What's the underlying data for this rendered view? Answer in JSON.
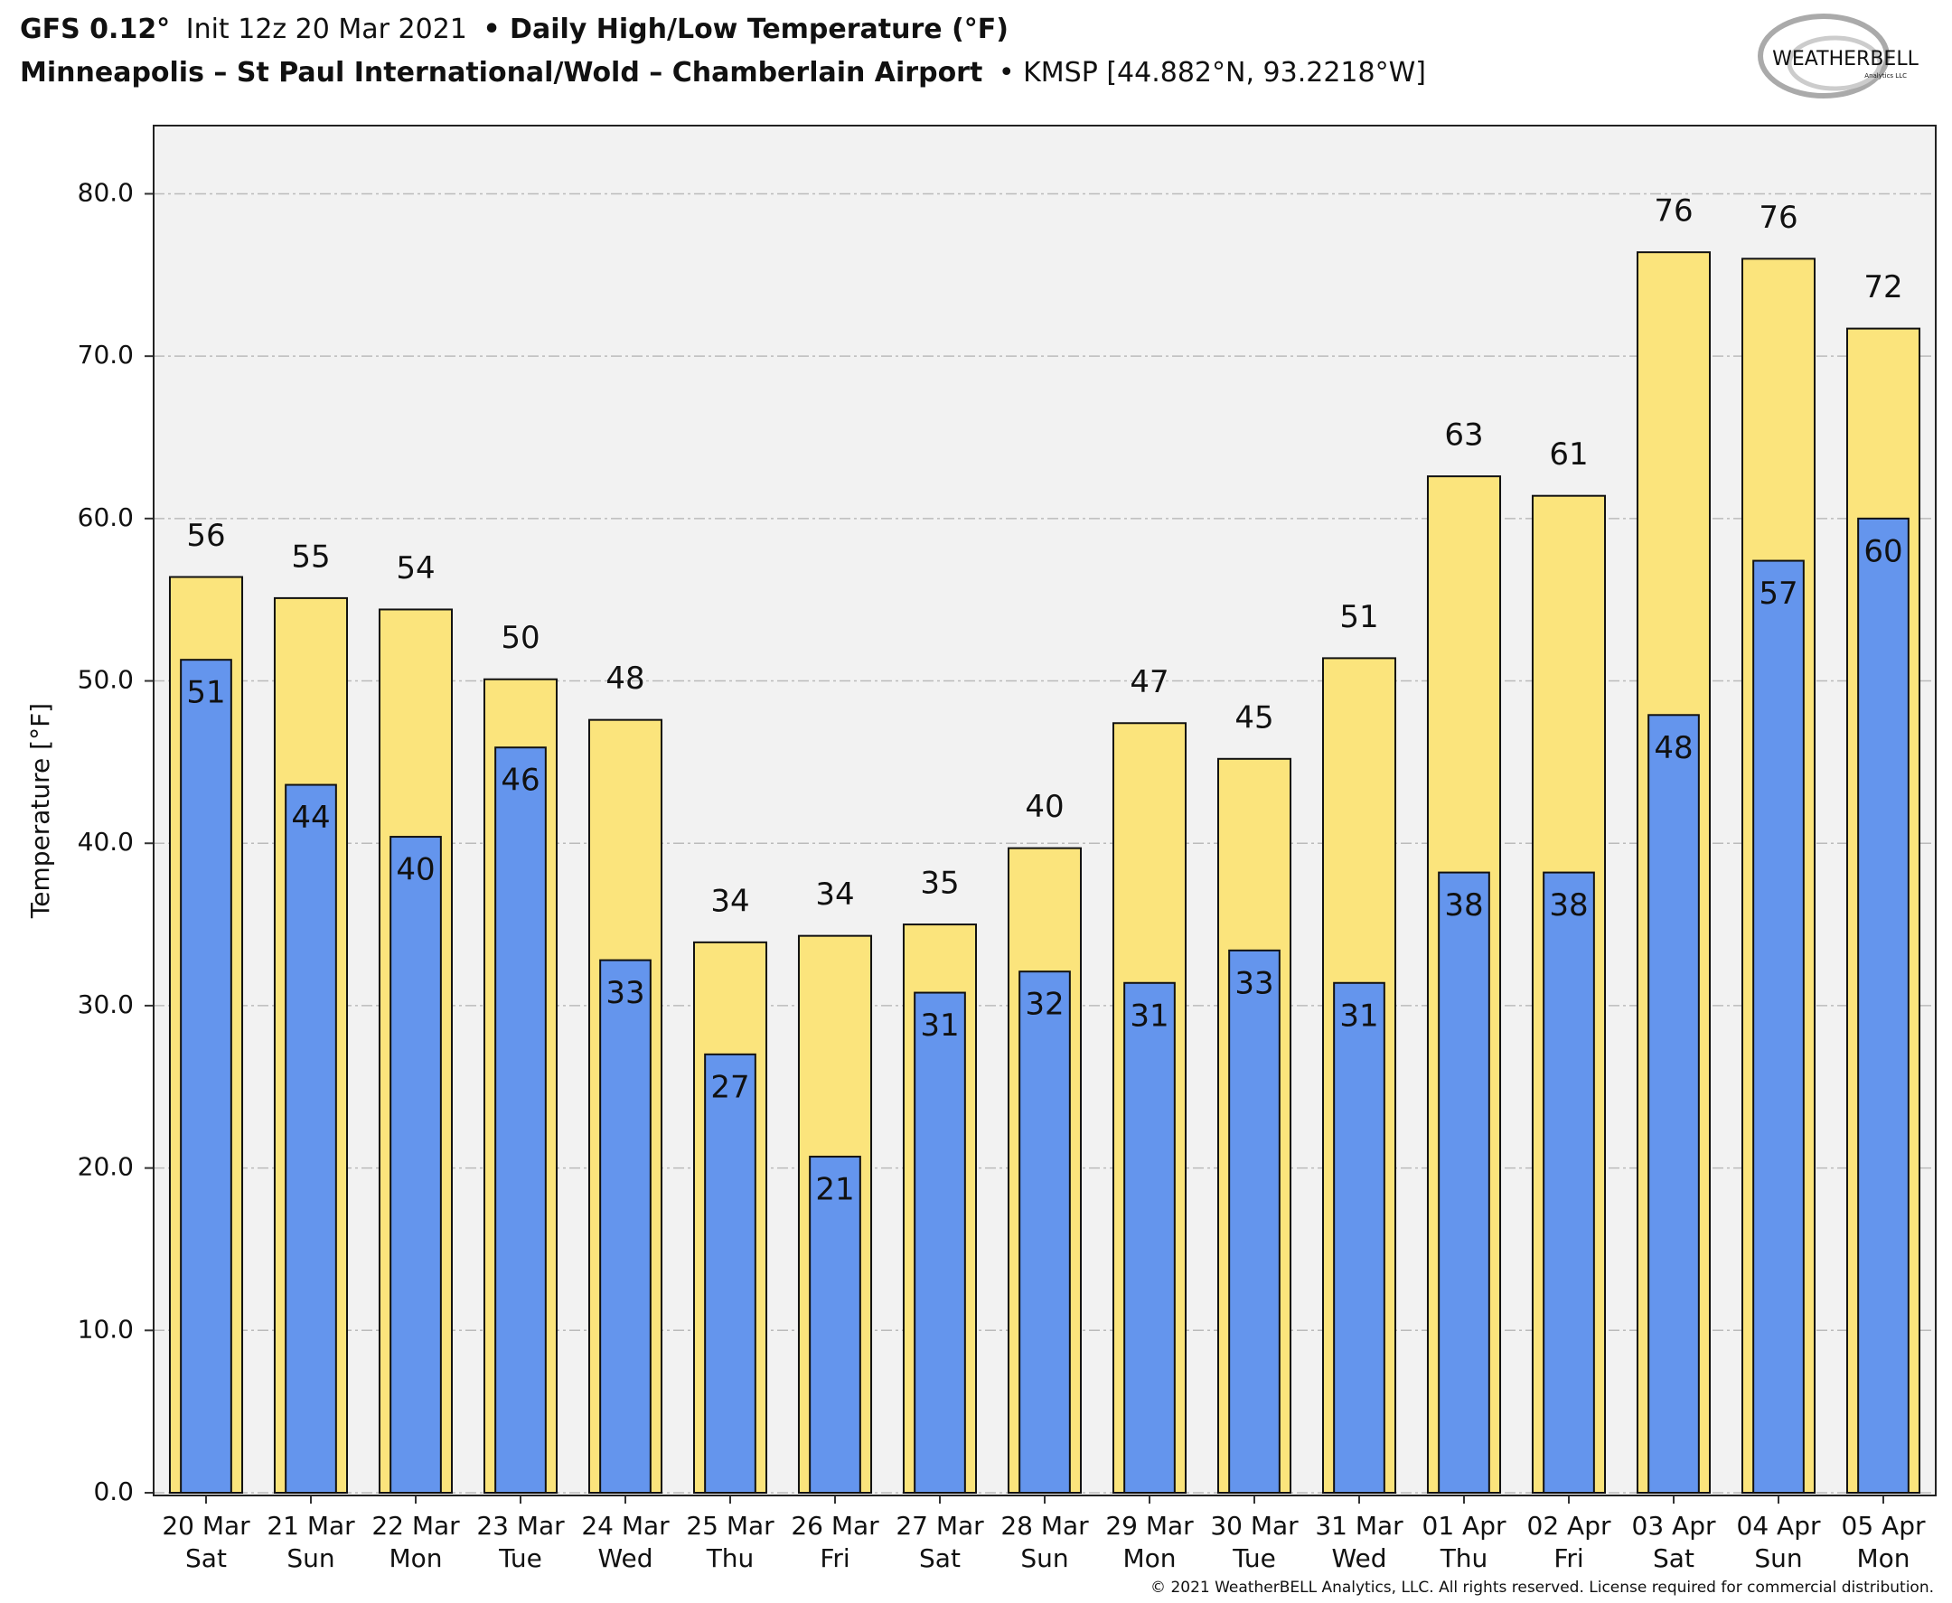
{
  "chart_data": {
    "type": "bar",
    "header": {
      "model": "GFS 0.12°",
      "init": "Init 12z 20 Mar 2021",
      "title": "• Daily High/Low Temperature (°F)",
      "station": "Minneapolis – St Paul International/Wold – Chamberlain Airport",
      "location": "• KMSP [44.882°N, 93.2218°W]"
    },
    "logo": {
      "name": "WEATHERBELL",
      "sub": "Analytics LLC"
    },
    "copyright": "© 2021 WeatherBELL Analytics, LLC. All rights reserved. License required for commercial distribution.",
    "y_label": "Temperature [°F]",
    "categories": [
      [
        "20 Mar",
        "Sat"
      ],
      [
        "21 Mar",
        "Sun"
      ],
      [
        "22 Mar",
        "Mon"
      ],
      [
        "23 Mar",
        "Tue"
      ],
      [
        "24 Mar",
        "Wed"
      ],
      [
        "25 Mar",
        "Thu"
      ],
      [
        "26 Mar",
        "Fri"
      ],
      [
        "27 Mar",
        "Sat"
      ],
      [
        "28 Mar",
        "Sun"
      ],
      [
        "29 Mar",
        "Mon"
      ],
      [
        "30 Mar",
        "Tue"
      ],
      [
        "31 Mar",
        "Wed"
      ],
      [
        "01 Apr",
        "Thu"
      ],
      [
        "02 Apr",
        "Fri"
      ],
      [
        "03 Apr",
        "Sat"
      ],
      [
        "04 Apr",
        "Sun"
      ],
      [
        "05 Apr",
        "Mon"
      ]
    ],
    "series": [
      {
        "name": "High",
        "color": "#fbe47c",
        "values": [
          56.4,
          55.1,
          54.4,
          50.1,
          47.6,
          33.9,
          34.3,
          35.0,
          39.7,
          47.4,
          45.2,
          51.4,
          62.6,
          61.4,
          76.4,
          76.0,
          71.7
        ],
        "value_labels": [
          "56",
          "55",
          "54",
          "50",
          "48",
          "34",
          "34",
          "35",
          "40",
          "47",
          "45",
          "51",
          "63",
          "61",
          "76",
          "76",
          "72"
        ]
      },
      {
        "name": "Low",
        "color": "#6495ed",
        "values": [
          51.3,
          43.6,
          40.4,
          45.9,
          32.8,
          27.0,
          20.7,
          30.8,
          32.1,
          31.4,
          33.4,
          31.4,
          38.2,
          38.2,
          47.9,
          57.4,
          60.0
        ],
        "value_labels": [
          "51",
          "44",
          "40",
          "46",
          "33",
          "27",
          "21",
          "31",
          "32",
          "31",
          "33",
          "31",
          "38",
          "38",
          "48",
          "57",
          "60"
        ]
      }
    ],
    "ylim": [
      0,
      84.2
    ],
    "yticks": [
      {
        "value": 0,
        "label": "0.0"
      },
      {
        "value": 10,
        "label": "10.0"
      },
      {
        "value": 20,
        "label": "20.0"
      },
      {
        "value": 30,
        "label": "30.0"
      },
      {
        "value": 40,
        "label": "40.0"
      },
      {
        "value": 50,
        "label": "50.0"
      },
      {
        "value": 60,
        "label": "60.0"
      },
      {
        "value": 70,
        "label": "70.0"
      },
      {
        "value": 80,
        "label": "80.0"
      }
    ],
    "grid": true
  }
}
